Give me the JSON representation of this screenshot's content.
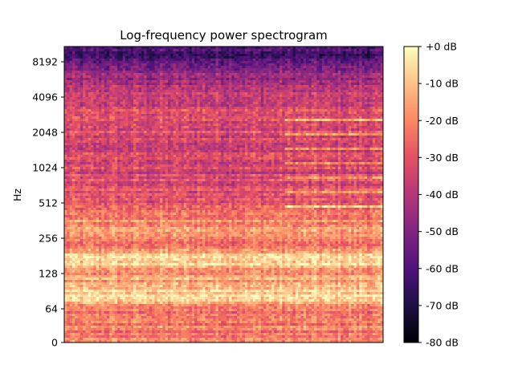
{
  "chart_data": {
    "type": "heatmap",
    "title": "Log-frequency power spectrogram",
    "xlabel": "",
    "ylabel": "Hz",
    "y_scale": "log2",
    "y_tick_values": [
      0,
      64,
      128,
      256,
      512,
      1024,
      2048,
      4096,
      8192
    ],
    "y_tick_labels": [
      "0",
      "64",
      "128",
      "256",
      "512",
      "1024",
      "2048",
      "4096",
      "8192"
    ],
    "x_ticks": [],
    "colorbar": {
      "colormap": "magma",
      "range_db": [
        -80,
        0
      ],
      "tick_values": [
        0,
        -10,
        -20,
        -30,
        -40,
        -50,
        -60,
        -70,
        -80
      ],
      "tick_labels": [
        "+0 dB",
        "-10 dB",
        "-20 dB",
        "-30 dB",
        "-40 dB",
        "-50 dB",
        "-60 dB",
        "-70 dB",
        "-80 dB"
      ]
    },
    "approx_power_profile_db": [
      {
        "hz": 40,
        "db": -22
      },
      {
        "hz": 64,
        "db": -25
      },
      {
        "hz": 80,
        "db": -8
      },
      {
        "hz": 100,
        "db": -10
      },
      {
        "hz": 128,
        "db": -20
      },
      {
        "hz": 150,
        "db": -8
      },
      {
        "hz": 180,
        "db": -9
      },
      {
        "hz": 220,
        "db": -24
      },
      {
        "hz": 256,
        "db": -22
      },
      {
        "hz": 300,
        "db": -14
      },
      {
        "hz": 512,
        "db": -30
      },
      {
        "hz": 1024,
        "db": -34
      },
      {
        "hz": 2048,
        "db": -32
      },
      {
        "hz": 4096,
        "db": -35
      },
      {
        "hz": 6000,
        "db": -45
      },
      {
        "hz": 8192,
        "db": -58
      },
      {
        "hz": 10000,
        "db": -62
      }
    ]
  }
}
